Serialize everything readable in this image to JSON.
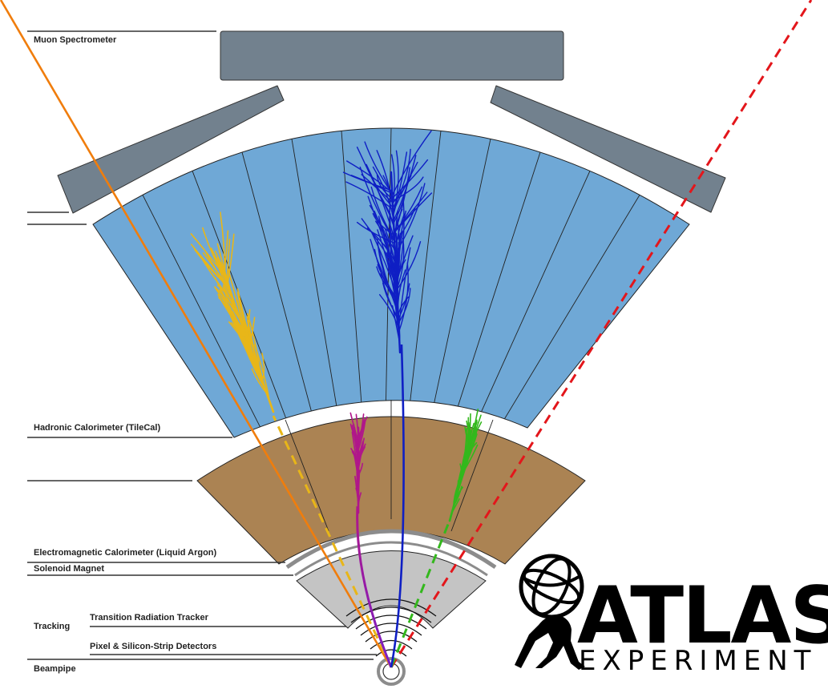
{
  "labels": {
    "muon": "Muon Spectrometer",
    "hadronic": "Hadronic Calorimeter (TileCal)",
    "em": "Electromagnetic Calorimeter (Liquid Argon)",
    "solenoid": "Solenoid Magnet",
    "tracking": "Tracking",
    "trt": "Transition Radiation Tracker",
    "pixel": "Pixel & Silicon-Strip Detectors",
    "beampipe": "Beampipe"
  },
  "logo": {
    "title": "ATLAS",
    "subtitle": "EXPERIMENT"
  },
  "colors": {
    "muon_chamber": "#72818e",
    "hadronic": "#6fa8d6",
    "em": "#ab8353",
    "solenoid": "#8c8c8c",
    "tracker": "#c4c4c4",
    "track_orange": "#f07d0c",
    "track_red": "#e3161b",
    "shower_yellow": "#e8b618",
    "shower_blue": "#0f1fc4",
    "shower_magenta": "#b0168a",
    "shower_green": "#33b81c"
  }
}
